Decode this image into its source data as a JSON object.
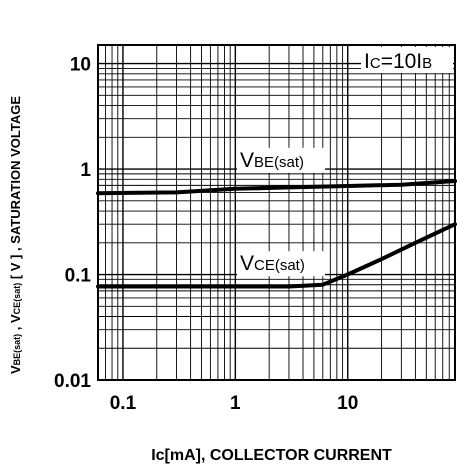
{
  "chart_data": {
    "type": "line",
    "xscale": "log",
    "yscale": "log",
    "xlim": [
      0.06,
      90
    ],
    "ylim": [
      0.01,
      15
    ],
    "grid": true,
    "xlabel": "Ic[mA], COLLECTOR CURRENT",
    "ylabel": {
      "main": "V",
      "sub1": "BE(sat)",
      "mid": " , V",
      "sub2": "CE(sat)",
      "rest": " [ V ] , SATURATION VOLTAGE"
    },
    "annotation": {
      "main": "I",
      "sub1": "C",
      "mid": "=10I",
      "sub2": "B"
    },
    "x_ticks": [
      {
        "value": 0.1,
        "label": "0.1"
      },
      {
        "value": 1,
        "label": "1"
      },
      {
        "value": 10,
        "label": "10"
      }
    ],
    "y_ticks": [
      {
        "value": 0.01,
        "label": "0.01"
      },
      {
        "value": 0.1,
        "label": "0.1"
      },
      {
        "value": 1,
        "label": "1"
      },
      {
        "value": 10,
        "label": "10"
      }
    ],
    "series": [
      {
        "label_main": "V",
        "label_sub": "BE(sat)",
        "label_at": [
          1.1,
          1.05
        ],
        "x": [
          0.06,
          0.3,
          1,
          3,
          10,
          30,
          90
        ],
        "y": [
          0.59,
          0.6,
          0.65,
          0.67,
          0.69,
          0.71,
          0.77
        ]
      },
      {
        "label_main": "V",
        "label_sub": "CE(sat)",
        "label_at": [
          1.1,
          0.11
        ],
        "x": [
          0.06,
          0.3,
          1,
          3,
          6,
          10,
          20,
          40,
          90
        ],
        "y": [
          0.077,
          0.077,
          0.077,
          0.077,
          0.08,
          0.1,
          0.14,
          0.2,
          0.3
        ]
      }
    ]
  }
}
